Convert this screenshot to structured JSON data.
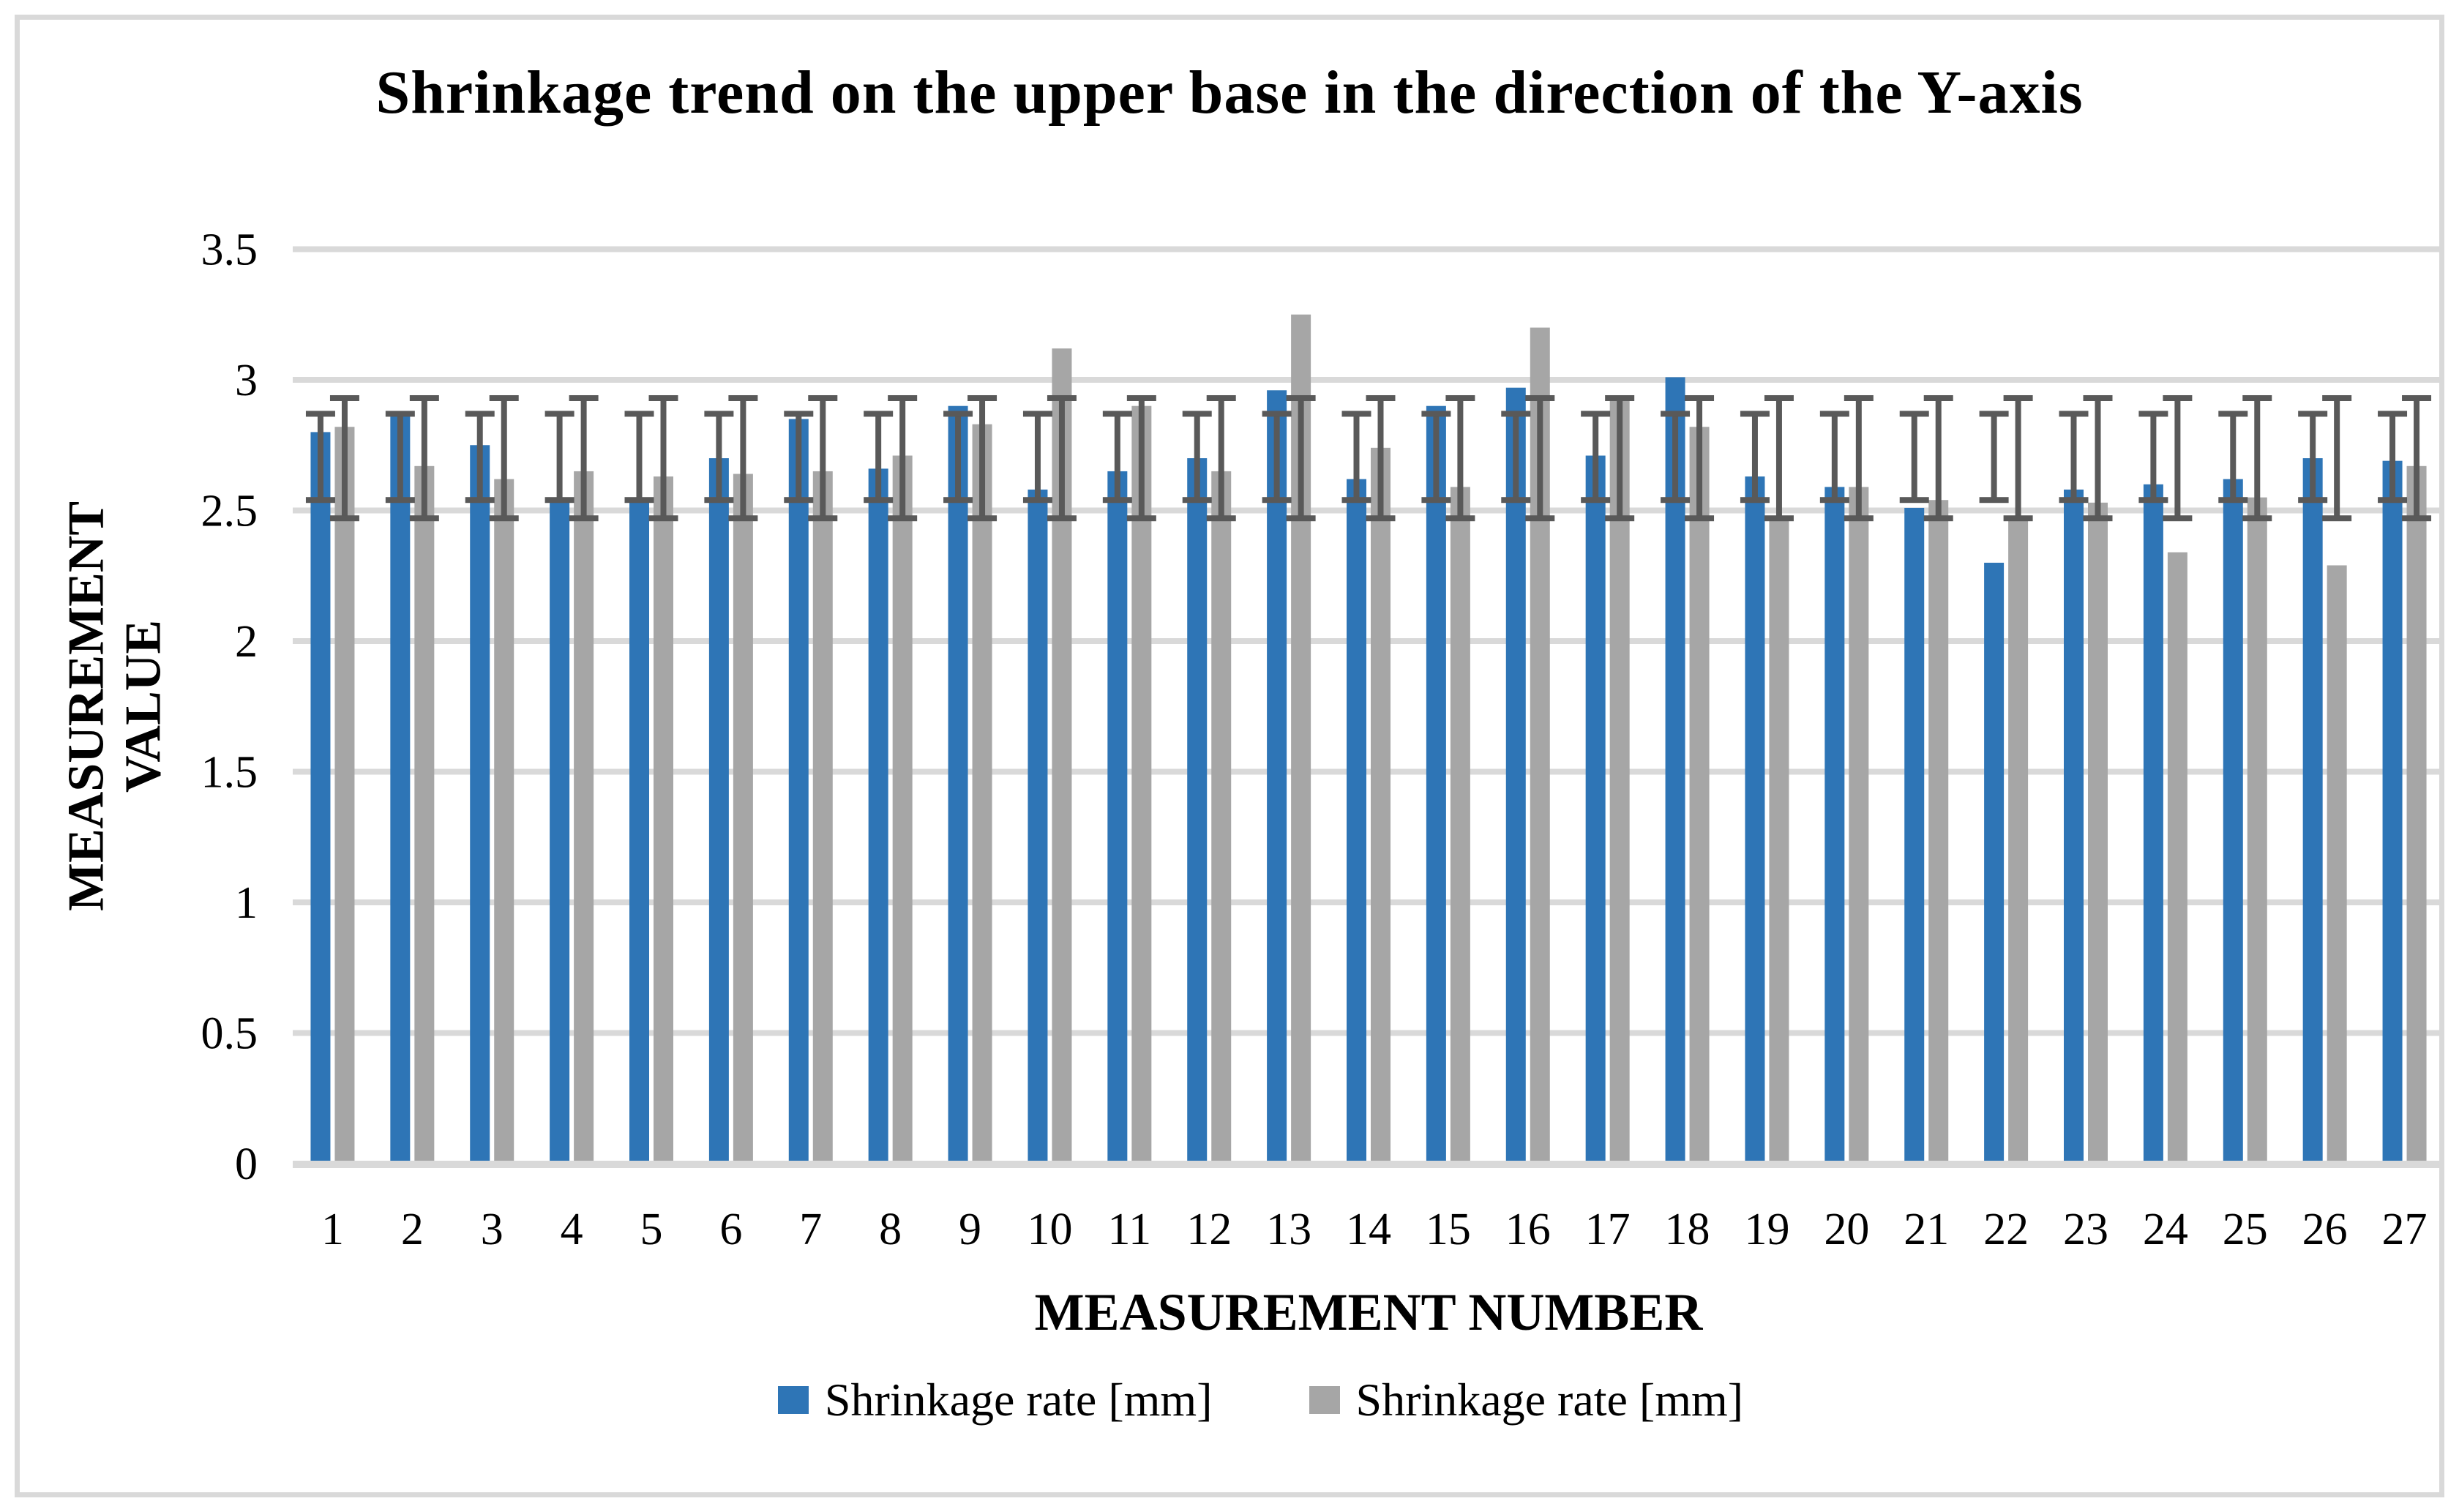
{
  "page": {
    "title": "Shrinkage trend on the upper base in the direction of the Y-axis"
  },
  "axes": {
    "y_title": "MEASUREMENT\nVALUE",
    "x_title": "MEASUREMENT NUMBER",
    "y_ticks": [
      "0",
      "0.5",
      "1",
      "1.5",
      "2",
      "2.5",
      "3",
      "3.5"
    ]
  },
  "colors": {
    "series_blue": "#2E75B6",
    "series_gray": "#A6A6A6",
    "error_bar": "#595959",
    "gridline": "#D9D9D9",
    "axis_line": "#D9D9D9",
    "frame_border": "#D9D9D9"
  },
  "chart_data": {
    "type": "bar",
    "title": "Shrinkage trend on the upper base in the direction of the Y-axis",
    "xlabel": "MEASUREMENT NUMBER",
    "ylabel": "MEASUREMENT VALUE",
    "categories": [
      "1",
      "2",
      "3",
      "4",
      "5",
      "6",
      "7",
      "8",
      "9",
      "10",
      "11",
      "12",
      "13",
      "14",
      "15",
      "16",
      "17",
      "18",
      "19",
      "20",
      "21",
      "22",
      "23",
      "24",
      "25",
      "26",
      "27"
    ],
    "series": [
      {
        "name": "Shrinkage rate [mm]",
        "color": "#2E75B6",
        "values": [
          2.8,
          2.86,
          2.75,
          2.54,
          2.54,
          2.7,
          2.85,
          2.66,
          2.9,
          2.58,
          2.65,
          2.7,
          2.96,
          2.62,
          2.9,
          2.97,
          2.71,
          3.01,
          2.63,
          2.59,
          2.51,
          2.3,
          2.58,
          2.6,
          2.62,
          2.7,
          2.69
        ],
        "error_low": 2.54,
        "error_high": 2.87
      },
      {
        "name": "Shrinkage rate [mm]",
        "color": "#A6A6A6",
        "values": [
          2.82,
          2.67,
          2.62,
          2.65,
          2.63,
          2.64,
          2.65,
          2.71,
          2.83,
          3.12,
          2.9,
          2.65,
          3.25,
          2.74,
          2.59,
          3.2,
          2.92,
          2.82,
          2.47,
          2.59,
          2.54,
          2.47,
          2.53,
          2.34,
          2.55,
          2.29,
          2.67
        ],
        "error_low": 2.47,
        "error_high": 2.93
      }
    ],
    "ylim": [
      0,
      3.5
    ],
    "ytick_step": 0.5,
    "grid": true,
    "legend_position": "bottom"
  }
}
